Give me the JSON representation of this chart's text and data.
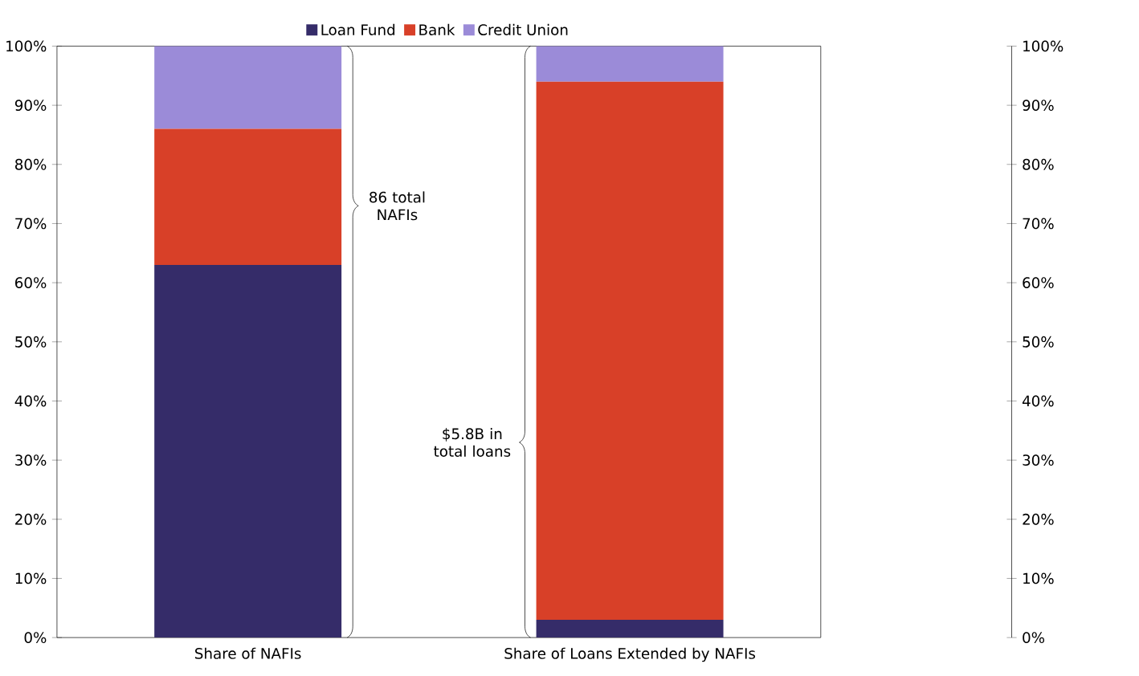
{
  "chart_data": {
    "type": "bar",
    "stacked": true,
    "categories": [
      "Share of NAFIs",
      "Share of Loans Extended by NAFIs"
    ],
    "series": [
      {
        "name": "Loan Fund",
        "color": "#352c69",
        "values": [
          63,
          3
        ]
      },
      {
        "name": "Bank",
        "color": "#d84028",
        "values": [
          23,
          91
        ]
      },
      {
        "name": "Credit Union",
        "color": "#9b8bd8",
        "values": [
          14,
          6
        ]
      }
    ],
    "ylim": [
      0,
      100
    ],
    "yticks": [
      {
        "value": 0,
        "label": "0%"
      },
      {
        "value": 10,
        "label": "10%"
      },
      {
        "value": 20,
        "label": "20%"
      },
      {
        "value": 30,
        "label": "30%"
      },
      {
        "value": 40,
        "label": "40%"
      },
      {
        "value": 50,
        "label": "50%"
      },
      {
        "value": 60,
        "label": "60%"
      },
      {
        "value": 70,
        "label": "70%"
      },
      {
        "value": 80,
        "label": "80%"
      },
      {
        "value": 90,
        "label": "90%"
      },
      {
        "value": 100,
        "label": "100%"
      }
    ],
    "y2lim": [
      0,
      100
    ],
    "y2ticks": [
      {
        "value": 0,
        "label": "0%"
      },
      {
        "value": 10,
        "label": "10%"
      },
      {
        "value": 20,
        "label": "20%"
      },
      {
        "value": 30,
        "label": "30%"
      },
      {
        "value": 40,
        "label": "40%"
      },
      {
        "value": 50,
        "label": "50%"
      },
      {
        "value": 60,
        "label": "60%"
      },
      {
        "value": 70,
        "label": "70%"
      },
      {
        "value": 80,
        "label": "80%"
      },
      {
        "value": 90,
        "label": "90%"
      },
      {
        "value": 100,
        "label": "100%"
      }
    ],
    "annotations": [
      "86 total NAFIs",
      "$5.8B in total loans"
    ],
    "legend": "top",
    "grid": false
  }
}
